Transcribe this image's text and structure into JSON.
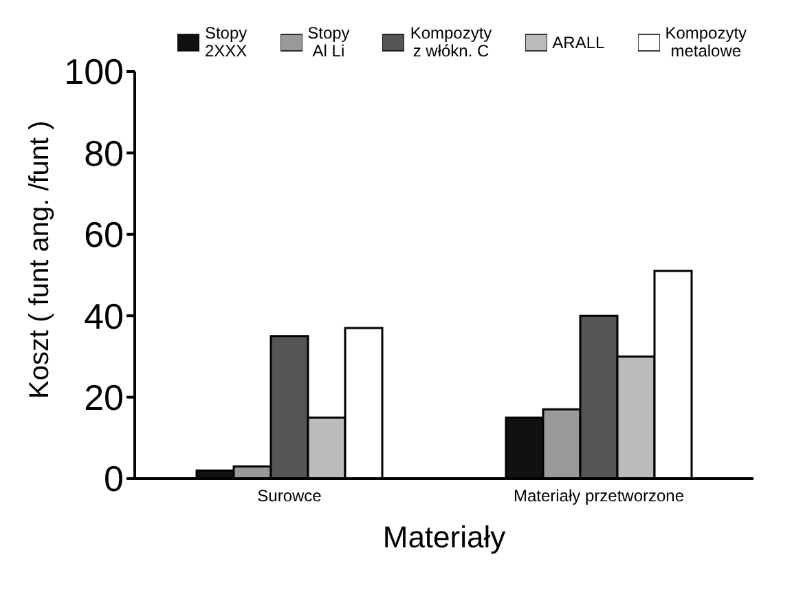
{
  "chart_data": {
    "type": "bar",
    "xlabel": "Materiały",
    "ylabel": "Koszt ( funt ang. /funt )",
    "categories": [
      "Surowce",
      "Materiały przetworzone"
    ],
    "series": [
      {
        "name": "Stopy\n2XXX",
        "color": "#111111",
        "values": [
          2,
          15
        ]
      },
      {
        "name": "Stopy\nAl Li",
        "color": "#999999",
        "values": [
          3,
          17
        ]
      },
      {
        "name": "Kompozyty\nz włókn. C",
        "color": "#555555",
        "values": [
          35,
          40
        ]
      },
      {
        "name": "ARALL",
        "color": "#bbbbbb",
        "values": [
          15,
          30
        ]
      },
      {
        "name": "Kompozyty\nmetalowe",
        "color": "#ffffff",
        "values": [
          37,
          51
        ]
      }
    ],
    "ylim": [
      0,
      100
    ],
    "yticks": [
      0,
      20,
      40,
      60,
      80,
      100
    ],
    "grid": false,
    "legend": "top"
  }
}
